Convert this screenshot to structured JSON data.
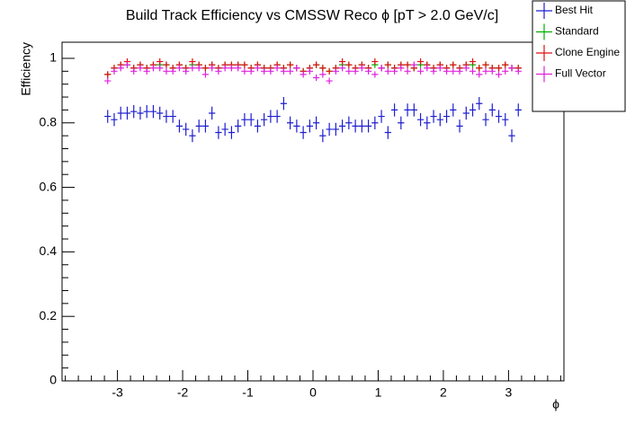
{
  "chart_data": {
    "type": "errorbar",
    "title": "Build Track Efficiency vs CMSSW Reco ϕ [pT > 2.0 GeV/c]",
    "xlabel": "ϕ",
    "ylabel": "Efficiency",
    "xlim": [
      -3.85,
      3.85
    ],
    "ylim": [
      0,
      1.05
    ],
    "xticks": [
      -3,
      -2,
      -1,
      0,
      1,
      2,
      3
    ],
    "yticks": [
      0,
      0.2,
      0.4,
      0.6,
      0.8,
      1
    ],
    "legend": "outside-top-right",
    "xerr": 0.05,
    "x": [
      -3.15,
      -3.05,
      -2.95,
      -2.85,
      -2.75,
      -2.65,
      -2.55,
      -2.45,
      -2.35,
      -2.25,
      -2.15,
      -2.05,
      -1.95,
      -1.85,
      -1.75,
      -1.65,
      -1.55,
      -1.45,
      -1.35,
      -1.25,
      -1.15,
      -1.05,
      -0.95,
      -0.85,
      -0.75,
      -0.65,
      -0.55,
      -0.45,
      -0.35,
      -0.25,
      -0.15,
      -0.05,
      0.05,
      0.15,
      0.25,
      0.35,
      0.45,
      0.55,
      0.65,
      0.75,
      0.85,
      0.95,
      1.05,
      1.15,
      1.25,
      1.35,
      1.45,
      1.55,
      1.65,
      1.75,
      1.85,
      1.95,
      2.05,
      2.15,
      2.25,
      2.35,
      2.45,
      2.55,
      2.65,
      2.75,
      2.85,
      2.95,
      3.05,
      3.15
    ],
    "series": [
      {
        "name": "Best Hit",
        "color": "#1f1fd0",
        "yerr": 0.02,
        "values": [
          0.82,
          0.81,
          0.83,
          0.83,
          0.835,
          0.83,
          0.835,
          0.835,
          0.83,
          0.82,
          0.82,
          0.79,
          0.78,
          0.76,
          0.79,
          0.79,
          0.83,
          0.77,
          0.78,
          0.77,
          0.79,
          0.81,
          0.81,
          0.79,
          0.81,
          0.82,
          0.82,
          0.86,
          0.8,
          0.79,
          0.77,
          0.79,
          0.8,
          0.76,
          0.78,
          0.78,
          0.79,
          0.8,
          0.79,
          0.79,
          0.79,
          0.8,
          0.82,
          0.77,
          0.84,
          0.8,
          0.84,
          0.84,
          0.81,
          0.8,
          0.82,
          0.81,
          0.82,
          0.84,
          0.79,
          0.83,
          0.84,
          0.86,
          0.81,
          0.84,
          0.82,
          0.81,
          0.76,
          0.84
        ]
      },
      {
        "name": "Standard",
        "color": "#00b000",
        "yerr": 0.01,
        "values": [
          0.95,
          0.97,
          0.98,
          0.98,
          0.97,
          0.98,
          0.97,
          0.98,
          0.98,
          0.98,
          0.97,
          0.98,
          0.97,
          0.98,
          0.98,
          0.97,
          0.98,
          0.97,
          0.98,
          0.98,
          0.98,
          0.98,
          0.97,
          0.98,
          0.97,
          0.97,
          0.98,
          0.97,
          0.98,
          0.97,
          0.96,
          0.97,
          0.98,
          0.97,
          0.96,
          0.97,
          0.98,
          0.98,
          0.97,
          0.98,
          0.97,
          0.98,
          0.97,
          0.98,
          0.97,
          0.98,
          0.98,
          0.97,
          0.98,
          0.98,
          0.97,
          0.98,
          0.97,
          0.98,
          0.97,
          0.98,
          0.98,
          0.97,
          0.98,
          0.97,
          0.97,
          0.98,
          0.97,
          0.97
        ]
      },
      {
        "name": "Clone Engine",
        "color": "#e01010",
        "yerr": 0.01,
        "values": [
          0.95,
          0.97,
          0.98,
          0.99,
          0.97,
          0.98,
          0.97,
          0.98,
          0.99,
          0.98,
          0.97,
          0.98,
          0.97,
          0.99,
          0.98,
          0.97,
          0.98,
          0.97,
          0.98,
          0.98,
          0.98,
          0.98,
          0.97,
          0.98,
          0.97,
          0.97,
          0.98,
          0.97,
          0.98,
          0.97,
          0.96,
          0.97,
          0.98,
          0.97,
          0.96,
          0.97,
          0.99,
          0.98,
          0.97,
          0.98,
          0.97,
          0.99,
          0.97,
          0.98,
          0.97,
          0.98,
          0.98,
          0.97,
          0.99,
          0.98,
          0.97,
          0.98,
          0.97,
          0.98,
          0.97,
          0.98,
          0.99,
          0.97,
          0.98,
          0.97,
          0.97,
          0.98,
          0.97,
          0.97
        ]
      },
      {
        "name": "Full Vector",
        "color": "#e020e0",
        "yerr": 0.01,
        "values": [
          0.93,
          0.96,
          0.97,
          0.98,
          0.96,
          0.97,
          0.96,
          0.97,
          0.97,
          0.96,
          0.96,
          0.97,
          0.96,
          0.97,
          0.97,
          0.95,
          0.97,
          0.96,
          0.97,
          0.97,
          0.97,
          0.96,
          0.96,
          0.97,
          0.96,
          0.96,
          0.97,
          0.96,
          0.96,
          0.97,
          0.95,
          0.96,
          0.94,
          0.95,
          0.93,
          0.96,
          0.97,
          0.96,
          0.96,
          0.97,
          0.96,
          0.95,
          0.97,
          0.96,
          0.96,
          0.97,
          0.96,
          0.98,
          0.96,
          0.97,
          0.96,
          0.97,
          0.96,
          0.96,
          0.96,
          0.97,
          0.96,
          0.95,
          0.96,
          0.96,
          0.95,
          0.96,
          0.97,
          0.96
        ]
      }
    ]
  }
}
